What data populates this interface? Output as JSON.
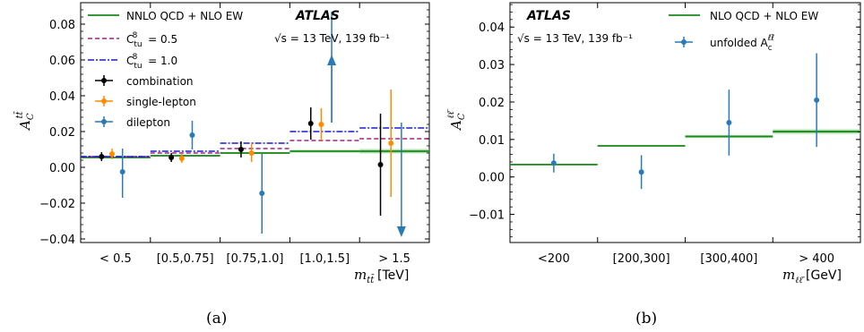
{
  "colors": {
    "nnlo": "#1a8a1a",
    "c05": "#a0208a",
    "c10": "#1a1ad0",
    "combination": "#000000",
    "single_lepton": "#ff8c00",
    "dilepton": "#2a7ab8",
    "unfolded": "#2a7ab8"
  },
  "chart_data": [
    {
      "type": "scatter",
      "panel_label": "(a)",
      "ylabel": "A_C^{tt̄}",
      "xlabel": "m_{tt̄}",
      "xunit": "[TeV]",
      "ylim": [
        -0.042,
        0.092
      ],
      "categories": [
        "< 0.5",
        "[0.5,0.75]",
        "[0.75,1.0]",
        "[1.0,1.5]",
        "> 1.5"
      ],
      "yticks": [
        -0.04,
        -0.02,
        0.0,
        0.02,
        0.04,
        0.06,
        0.08
      ],
      "yticklabels": [
        "−0.04",
        "−0.02",
        "0.00",
        "0.02",
        "0.04",
        "0.06",
        "0.08"
      ],
      "atlas_label": "ATLAS",
      "energy_label": "√s = 13 TeV, 139 fb⁻¹",
      "legend": [
        {
          "label": "NNLO QCD + NLO EW",
          "key": "nnlo",
          "style": "solid"
        },
        {
          "label": "C_{tu}^{8} = 0.5",
          "key": "c05",
          "style": "dashed"
        },
        {
          "label": "C_{tu}^{8} = 1.0",
          "key": "c10",
          "style": "dashdot"
        },
        {
          "label": "combination",
          "key": "combination",
          "style": "marker"
        },
        {
          "label": "single-lepton",
          "key": "single_lepton",
          "style": "marker"
        },
        {
          "label": "dilepton",
          "key": "dilepton",
          "style": "marker"
        }
      ],
      "theory": [
        {
          "name": "NNLO QCD + NLO EW",
          "values": [
            0.0055,
            0.0065,
            0.008,
            0.009,
            0.009
          ],
          "band": [
            0.0005,
            0.0005,
            0.0005,
            0.0008,
            0.0012
          ]
        },
        {
          "name": "C_{tu}^{8} = 0.5",
          "values": [
            0.006,
            0.008,
            0.0105,
            0.015,
            0.016
          ]
        },
        {
          "name": "C_{tu}^{8} = 1.0",
          "values": [
            0.006,
            0.009,
            0.0135,
            0.02,
            0.022
          ]
        }
      ],
      "series": [
        {
          "name": "combination",
          "offset": -0.2,
          "values": [
            0.006,
            0.0055,
            0.01,
            0.0245,
            0.0015
          ],
          "err": [
            0.0025,
            0.0025,
            0.0045,
            0.009,
            0.0285
          ]
        },
        {
          "name": "single-lepton",
          "offset": -0.05,
          "values": [
            0.0075,
            0.005,
            0.008,
            0.024,
            0.0135
          ],
          "err": [
            0.003,
            0.0025,
            0.005,
            0.009,
            0.03
          ]
        },
        {
          "name": "dilepton",
          "offset": 0.1,
          "values": [
            -0.0025,
            0.018,
            -0.0145,
            0.087,
            -0.043
          ],
          "err_up": [
            0.013,
            0.008,
            0.022,
            0.0,
            0.068
          ],
          "err_down": [
            0.0145,
            0.008,
            0.0225,
            0.062,
            0.0
          ],
          "arrow": [
            null,
            null,
            null,
            "up",
            "down"
          ]
        }
      ]
    },
    {
      "type": "scatter",
      "panel_label": "(b)",
      "ylabel": "A_C^{ℓℓ̄}",
      "xlabel": "m_{ℓℓ̄}",
      "xunit": "[GeV]",
      "ylim": [
        -0.0175,
        0.0465
      ],
      "categories": [
        "<200",
        "[200,300]",
        "[300,400]",
        "> 400"
      ],
      "yticks": [
        -0.01,
        0.0,
        0.01,
        0.02,
        0.03,
        0.04
      ],
      "yticklabels": [
        "−0.01",
        "0.00",
        "0.01",
        "0.02",
        "0.03",
        "0.04"
      ],
      "atlas_label": "ATLAS",
      "energy_label": "√s = 13 TeV, 139 fb⁻¹",
      "legend": [
        {
          "label": "NLO QCD + NLO EW",
          "key": "nnlo",
          "style": "solid"
        },
        {
          "label": "unfolded A_c^{ℓℓ̄}",
          "key": "unfolded",
          "style": "marker"
        }
      ],
      "theory": [
        {
          "name": "NLO QCD + NLO EW",
          "values": [
            0.0033,
            0.0083,
            0.0108,
            0.0121
          ],
          "band": [
            0.0002,
            0.0002,
            0.0004,
            0.0006
          ]
        }
      ],
      "series": [
        {
          "name": "unfolded",
          "offset": 0.0,
          "values": [
            0.0037,
            0.0013,
            0.0145,
            0.0205
          ],
          "err_up": [
            0.0025,
            0.0045,
            0.0088,
            0.0125
          ],
          "err_down": [
            0.0025,
            0.0045,
            0.0088,
            0.0125
          ]
        }
      ]
    }
  ]
}
